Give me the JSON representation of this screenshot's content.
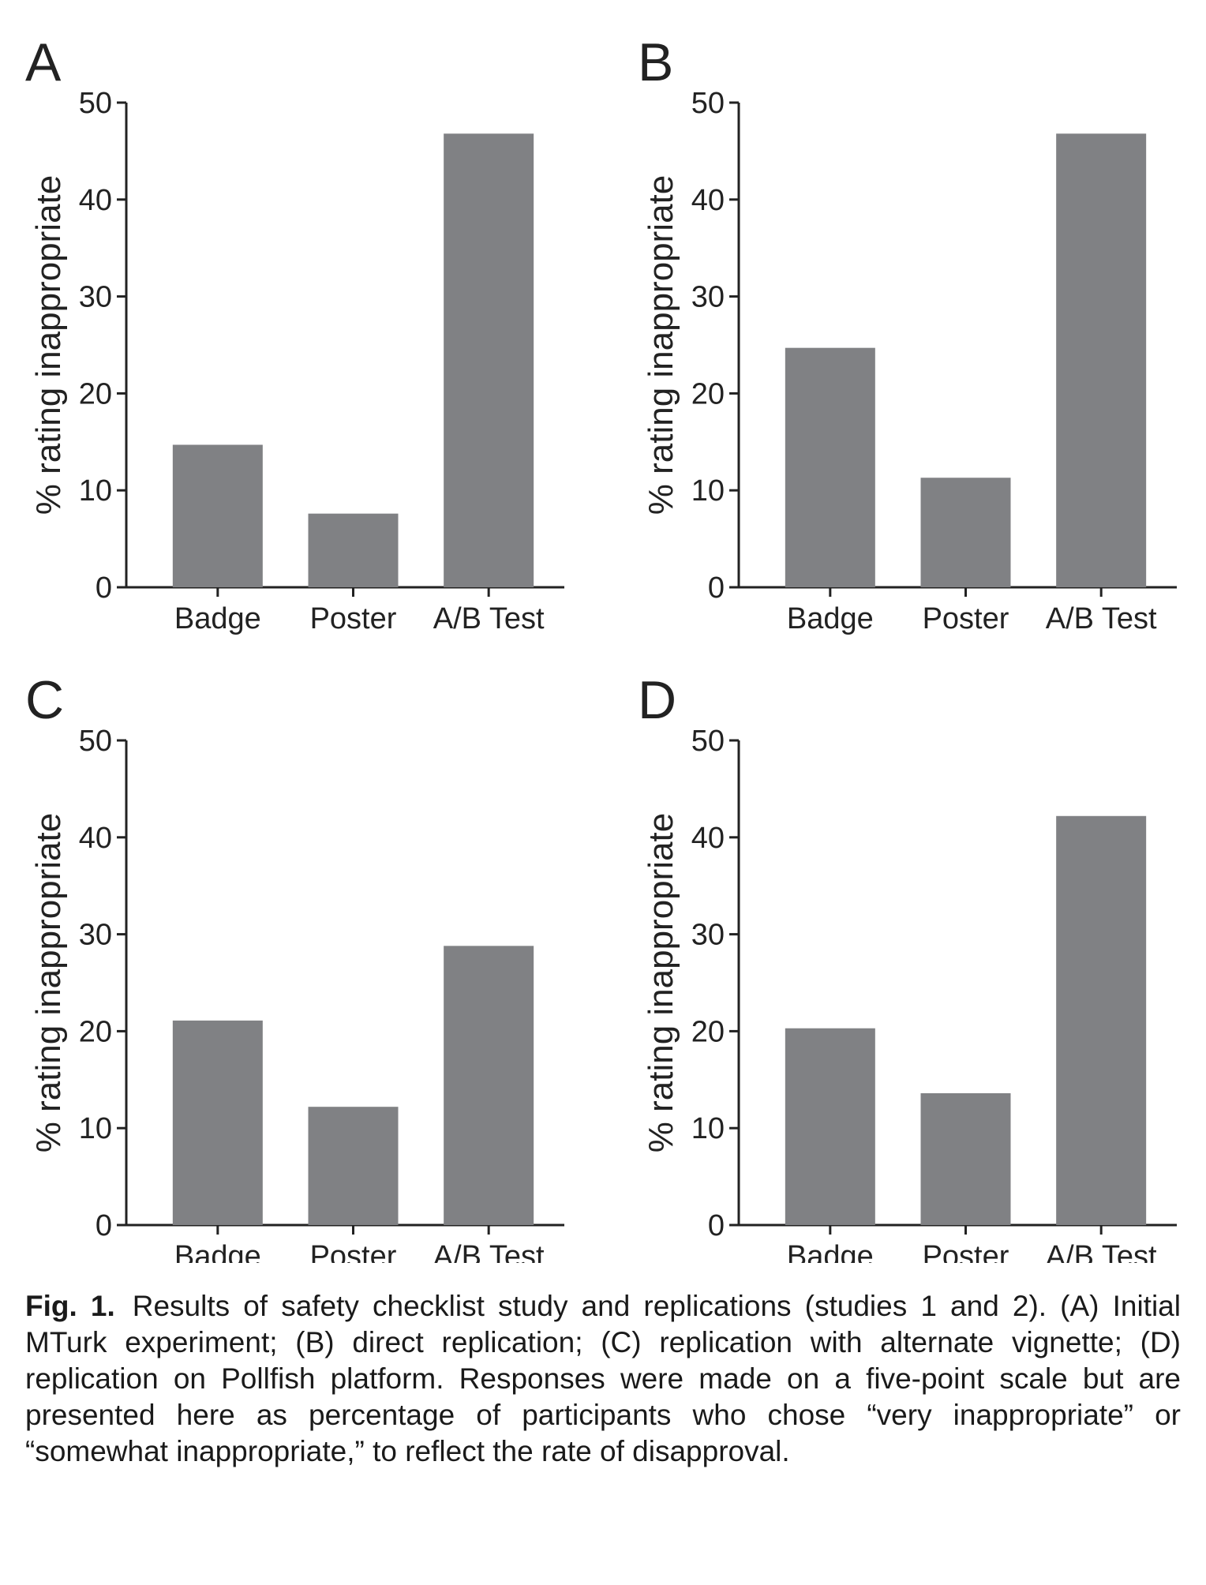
{
  "chart_data": [
    {
      "type": "bar",
      "panel": "A",
      "categories": [
        "Badge",
        "Poster",
        "A/B Test"
      ],
      "values": [
        14.7,
        7.6,
        46.8
      ],
      "ylabel": "% rating inappropriate",
      "ylim": [
        0,
        50
      ],
      "yticks": [
        0,
        10,
        20,
        30,
        40,
        50
      ],
      "bar_color": "#808184",
      "grid": false
    },
    {
      "type": "bar",
      "panel": "B",
      "categories": [
        "Badge",
        "Poster",
        "A/B Test"
      ],
      "values": [
        24.7,
        11.3,
        46.8
      ],
      "ylabel": "% rating inappropriate",
      "ylim": [
        0,
        50
      ],
      "yticks": [
        0,
        10,
        20,
        30,
        40,
        50
      ],
      "bar_color": "#808184",
      "grid": false
    },
    {
      "type": "bar",
      "panel": "C",
      "categories": [
        "Badge",
        "Poster",
        "A/B Test"
      ],
      "values": [
        21.1,
        12.2,
        28.8
      ],
      "ylabel": "% rating inappropriate",
      "ylim": [
        0,
        50
      ],
      "yticks": [
        0,
        10,
        20,
        30,
        40,
        50
      ],
      "bar_color": "#808184",
      "grid": false
    },
    {
      "type": "bar",
      "panel": "D",
      "categories": [
        "Badge",
        "Poster",
        "A/B Test"
      ],
      "values": [
        20.3,
        13.6,
        42.2
      ],
      "ylabel": "% rating inappropriate",
      "ylim": [
        0,
        50
      ],
      "yticks": [
        0,
        10,
        20,
        30,
        40,
        50
      ],
      "bar_color": "#808184",
      "grid": false
    }
  ],
  "caption": {
    "label": "Fig. 1.",
    "text": "Results of safety checklist study and replications (studies 1 and 2). (A) Initial MTurk experiment; (B) direct replication; (C) replication with alternate vignette; (D) replication on Pollfish platform. Responses were made on a five-point scale but are presented here as percentage of participants who chose “very inappropriate” or “somewhat inappropriate,” to reflect the rate of disapproval."
  }
}
